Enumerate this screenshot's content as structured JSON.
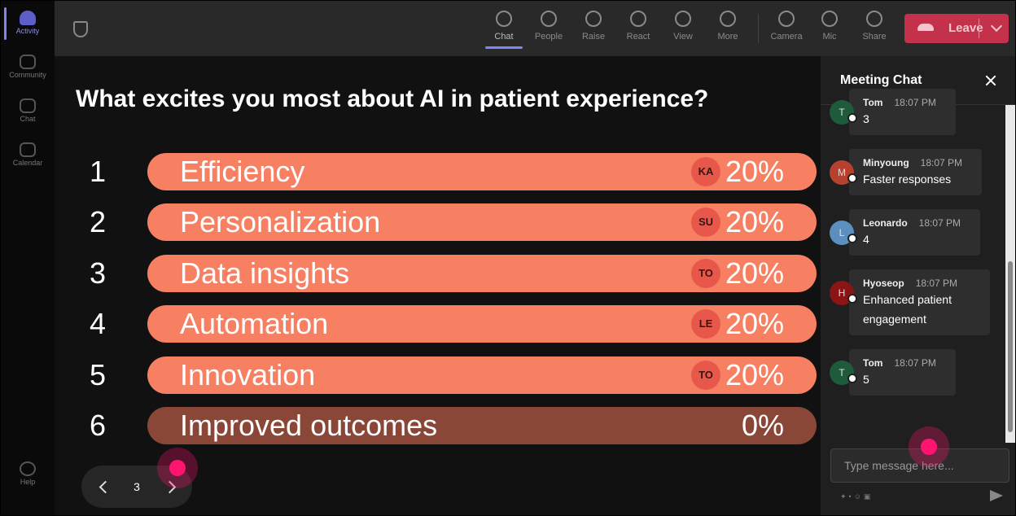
{
  "sidebar": {
    "items": [
      "Activity",
      "Community",
      "Chat",
      "Calendar"
    ],
    "help": "Help"
  },
  "toolbar": {
    "items": [
      "Chat",
      "People",
      "Raise",
      "React",
      "View",
      "More",
      "Camera",
      "Mic",
      "Share"
    ],
    "leave": "Leave"
  },
  "poll": {
    "question": "What excites you most about AI in patient experience?",
    "options": [
      {
        "rank": "1",
        "label": "Efficiency",
        "badge": "KA",
        "percent": "20%"
      },
      {
        "rank": "2",
        "label": "Personalization",
        "badge": "SU",
        "percent": "20%"
      },
      {
        "rank": "3",
        "label": "Data insights",
        "badge": "TO",
        "percent": "20%"
      },
      {
        "rank": "4",
        "label": "Automation",
        "badge": "LE",
        "percent": "20%"
      },
      {
        "rank": "5",
        "label": "Innovation",
        "badge": "TO",
        "percent": "20%"
      },
      {
        "rank": "6",
        "label": "Improved outcomes",
        "percent": "0%"
      }
    ],
    "page": "3"
  },
  "chat": {
    "title": "Meeting Chat",
    "messages": [
      {
        "avatar": "T",
        "author": "Tom",
        "time": "18:07 PM",
        "text": "3"
      },
      {
        "avatar": "M",
        "author": "Minyoung",
        "time": "18:07 PM",
        "text": "Faster responses"
      },
      {
        "avatar": "L",
        "author": "Leonardo",
        "time": "18:07 PM",
        "text": "4"
      },
      {
        "avatar": "H",
        "author": "Hyoseop",
        "time": "18:07 PM",
        "text": "Enhanced patient engagement"
      },
      {
        "avatar": "T",
        "author": "Tom",
        "time": "18:07 PM",
        "text": "5"
      }
    ],
    "placeholder": "Type message here..."
  }
}
